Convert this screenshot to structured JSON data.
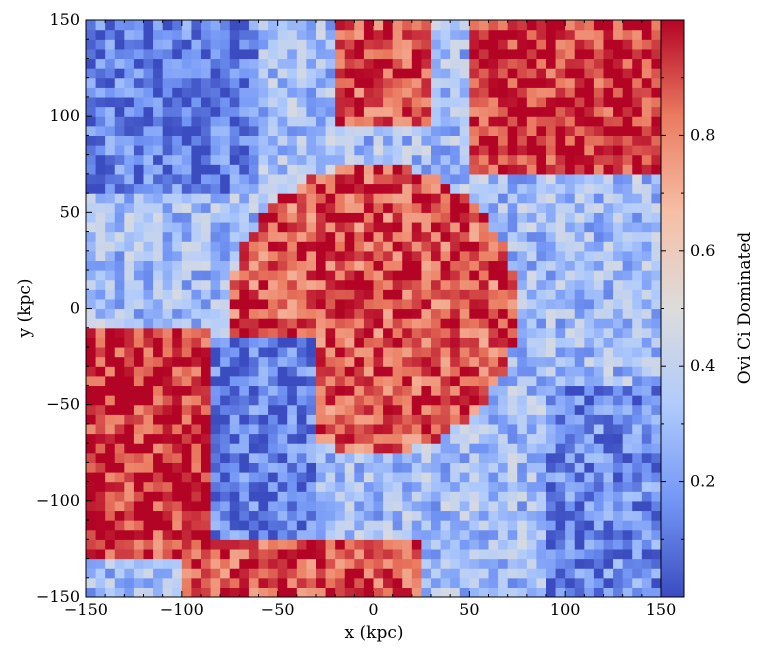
{
  "chart_data": {
    "type": "heatmap",
    "xlabel": "x  (kpc)",
    "ylabel": "y  (kpc)",
    "xlim": [
      -150,
      150
    ],
    "ylim": [
      -150,
      150
    ],
    "xticks": [
      -150,
      -100,
      -50,
      0,
      50,
      100,
      150
    ],
    "yticks": [
      -150,
      -100,
      -50,
      0,
      50,
      100,
      150
    ],
    "xtick_labels": [
      "−150",
      "−100",
      "−50",
      "0",
      "50",
      "100",
      "150"
    ],
    "ytick_labels": [
      "−150",
      "−100",
      "−50",
      "0",
      "50",
      "100",
      "150"
    ],
    "colorbar": {
      "label": "Ovi Ci Dominated",
      "range": [
        0,
        1
      ],
      "ticks": [
        0.2,
        0.4,
        0.6,
        0.8
      ],
      "tick_labels": [
        "0.2",
        "0.4",
        "0.6",
        "0.8"
      ],
      "colormap": "coolwarm",
      "colors": [
        "#3b4cc0",
        "#7396f5",
        "#b0cbfc",
        "#dddcdc",
        "#f6bfa6",
        "#ea7b60",
        "#b40426"
      ]
    },
    "regions": [
      {
        "shape": "disk",
        "center": [
          0,
          0
        ],
        "radius": 75,
        "value": 0.88
      },
      {
        "shape": "rect",
        "x": [
          -150,
          -85
        ],
        "y": [
          -120,
          -10
        ],
        "value": 0.95
      },
      {
        "shape": "rect",
        "x": [
          -85,
          -30
        ],
        "y": [
          -120,
          -15
        ],
        "value": 0.12
      },
      {
        "shape": "rect",
        "x": [
          -150,
          25
        ],
        "y": [
          -150,
          -120
        ],
        "value": 0.9
      },
      {
        "shape": "rect",
        "x": [
          -150,
          -102
        ],
        "y": [
          -150,
          -128
        ],
        "value": 0.3
      },
      {
        "shape": "rect",
        "x": [
          50,
          150
        ],
        "y": [
          70,
          150
        ],
        "value": 0.95
      },
      {
        "shape": "rect",
        "x": [
          -20,
          30
        ],
        "y": [
          95,
          150
        ],
        "value": 0.9
      },
      {
        "shape": "rect",
        "x": [
          -150,
          -60
        ],
        "y": [
          60,
          150
        ],
        "value": 0.12
      },
      {
        "shape": "rect",
        "x": [
          90,
          150
        ],
        "y": [
          -150,
          -40
        ],
        "value": 0.15
      }
    ]
  }
}
